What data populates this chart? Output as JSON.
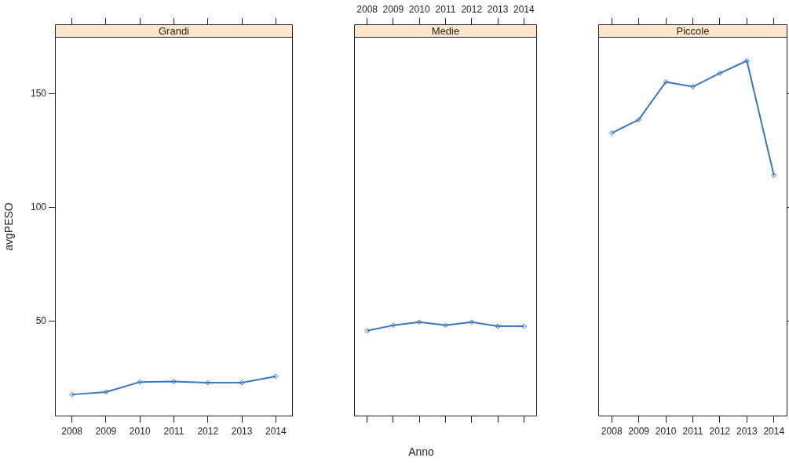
{
  "chart_data": [
    {
      "type": "line",
      "title": "Grandi",
      "ylabel": "avgPESO",
      "categories": [
        "2008",
        "2009",
        "2010",
        "2011",
        "2012",
        "2013",
        "2014"
      ],
      "values": [
        17.9,
        19,
        23.4,
        23.6,
        23.1,
        23.1,
        25.9
      ],
      "color": "#3a75c4",
      "marker": "diamond",
      "ylim": [
        8.3,
        175
      ],
      "yticks": [
        50,
        100,
        150
      ]
    },
    {
      "type": "line",
      "title": "Medie",
      "xlabel": "Anno",
      "categories": [
        "2008",
        "2009",
        "2010",
        "2011",
        "2012",
        "2013",
        "2014"
      ],
      "values": [
        45.9,
        48.3,
        49.7,
        48.3,
        49.7,
        47.9,
        47.9
      ],
      "color": "#3a75c4",
      "marker": "diamond",
      "ylim": [
        8.3,
        175
      ],
      "yticks": [
        50,
        100,
        150
      ],
      "tick_labels": "x"
    },
    {
      "type": "line",
      "title": "Piccole",
      "categories": [
        "2008",
        "2009",
        "2010",
        "2011",
        "2012",
        "2013",
        "2014"
      ],
      "values": [
        132.8,
        138.6,
        155.2,
        153.1,
        159,
        164.5,
        114.1
      ],
      "color": "#3a75c4",
      "marker": "diamond",
      "ylim": [
        8.3,
        175
      ],
      "yticks": [
        50,
        100,
        150
      ],
      "tick_labels": "x"
    }
  ]
}
